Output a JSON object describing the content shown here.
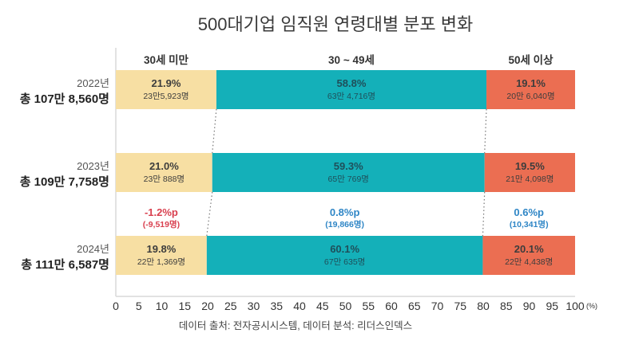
{
  "colors": {
    "under30": "#F7DFA3",
    "age30to49": "#14B0B9",
    "over50": "#EB6E52",
    "negative": "#D9404F",
    "positive": "#2F86C6",
    "axis": "#d9d9d9",
    "connector": "#777777"
  },
  "chart_data": {
    "type": "bar",
    "orientation": "horizontal-stacked-100",
    "title": "500대기업 임직원 연령대별 분포 변화",
    "categories_header": [
      "30세 미만",
      "30 ~ 49세",
      "50세 이상"
    ],
    "rows": [
      {
        "year": "2022년",
        "total": "총 107만 8,560명",
        "segments": [
          {
            "name": "30세 미만",
            "value": 21.9,
            "pct_label": "21.9%",
            "count_label": "23만5,923명"
          },
          {
            "name": "30 ~ 49세",
            "value": 58.8,
            "pct_label": "58.8%",
            "count_label": "63만 4,716명"
          },
          {
            "name": "50세 이상",
            "value": 19.1,
            "pct_label": "19.1%",
            "count_label": "20만 6,040명"
          }
        ]
      },
      {
        "year": "2023년",
        "total": "총 109만 7,758명",
        "segments": [
          {
            "name": "30세 미만",
            "value": 21.0,
            "pct_label": "21.0%",
            "count_label": "23만 888명"
          },
          {
            "name": "30 ~ 49세",
            "value": 59.3,
            "pct_label": "59.3%",
            "count_label": "65만 769명"
          },
          {
            "name": "50세 이상",
            "value": 19.5,
            "pct_label": "19.5%",
            "count_label": "21만 4,098명"
          }
        ]
      },
      {
        "year": "2024년",
        "total": "총 111만 6,587명",
        "segments": [
          {
            "name": "30세 미만",
            "value": 19.8,
            "pct_label": "19.8%",
            "count_label": "22만 1,369명"
          },
          {
            "name": "30 ~ 49세",
            "value": 60.1,
            "pct_label": "60.1%",
            "count_label": "67만 635명"
          },
          {
            "name": "50세 이상",
            "value": 20.1,
            "pct_label": "20.1%",
            "count_label": "22만 4,438명"
          }
        ]
      }
    ],
    "changes": [
      {
        "segment": "30세 미만",
        "pct": "-1.2%p",
        "count": "(-9,519명)",
        "sign": "negative"
      },
      {
        "segment": "30 ~ 49세",
        "pct": "0.8%p",
        "count": "(19,866명)",
        "sign": "positive"
      },
      {
        "segment": "50세 이상",
        "pct": "0.6%p",
        "count": "(10,341명)",
        "sign": "positive"
      }
    ],
    "xlim": [
      0,
      100
    ],
    "xticks": [
      0,
      5,
      10,
      15,
      20,
      25,
      30,
      35,
      40,
      45,
      50,
      55,
      60,
      65,
      70,
      75,
      80,
      85,
      90,
      95,
      100
    ],
    "xunit": "(%)",
    "grid": false,
    "legend": "top (column headers)"
  },
  "footer": {
    "source": "데이터 출처: 전자공시시스템, 데이터 분석: 리더스인덱스"
  }
}
